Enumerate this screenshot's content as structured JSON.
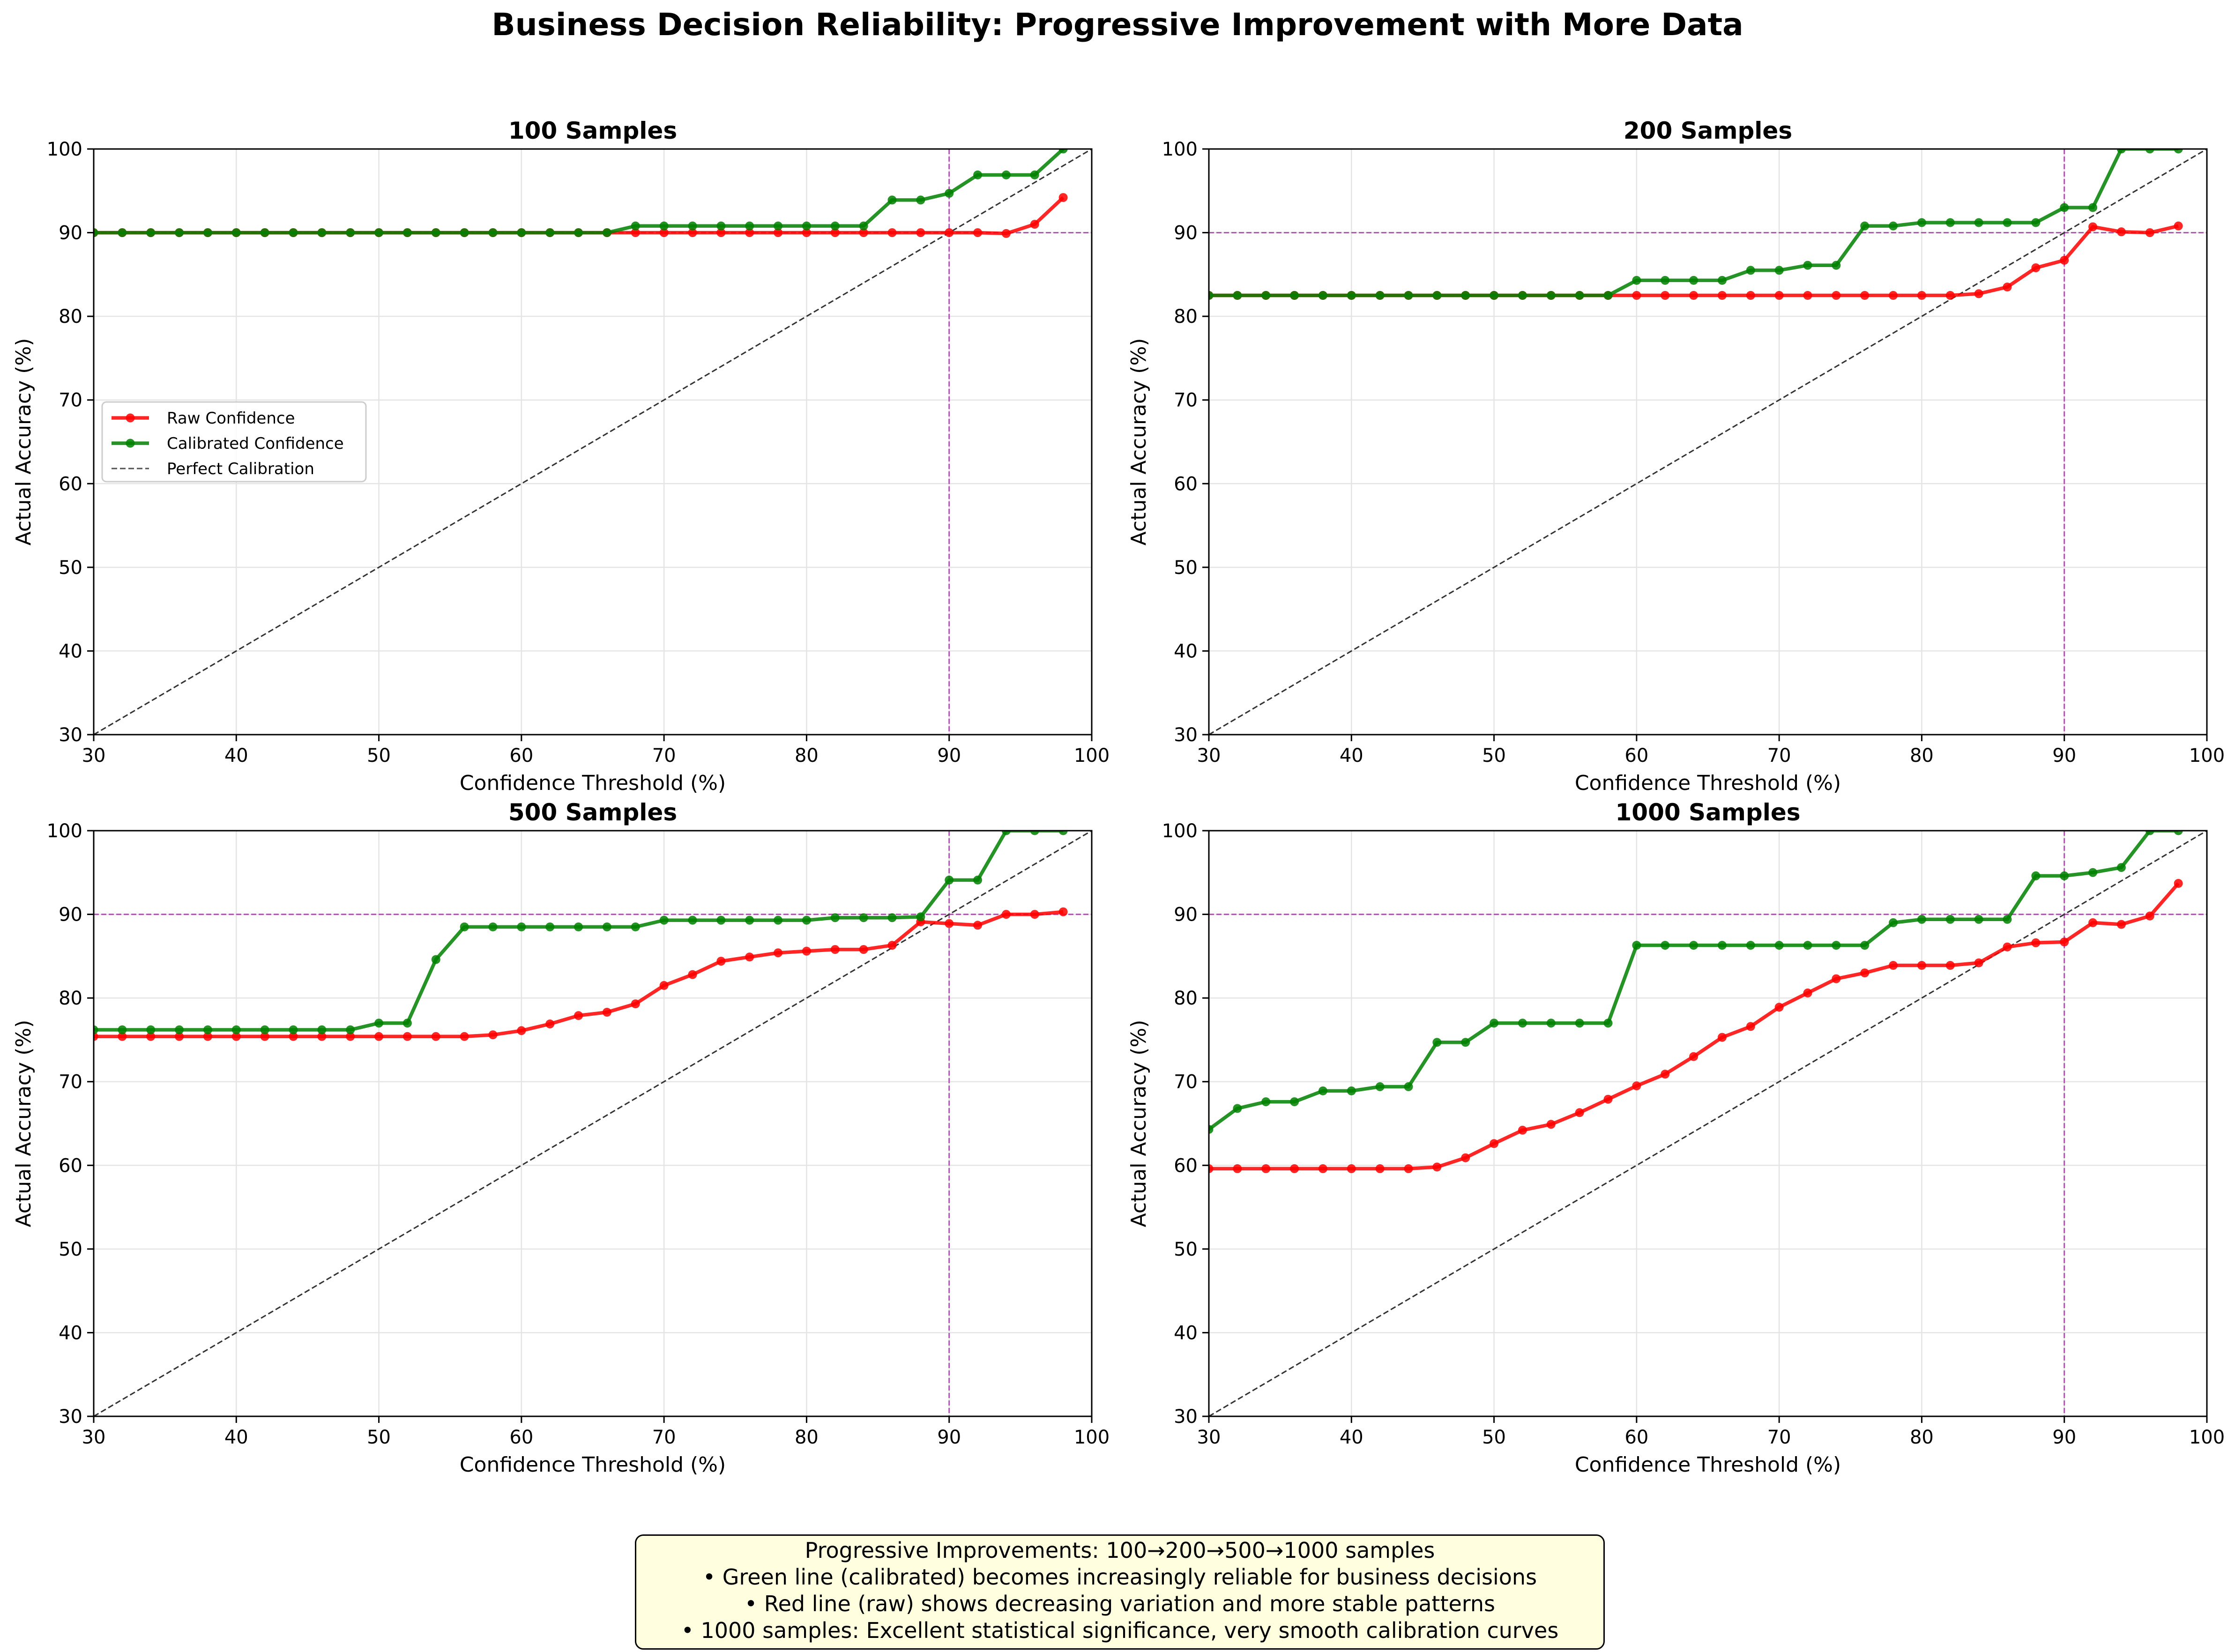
{
  "title": "Business Decision Reliability: Progressive Improvement with More Data",
  "note": {
    "lines": [
      "Progressive Improvements: 100→200→500→1000 samples",
      "• Green line (calibrated) becomes increasingly reliable for business decisions",
      "• Red line (raw) shows decreasing variation and more stable patterns",
      "• 1000 samples: Excellent statistical significance, very smooth calibration curves"
    ]
  },
  "colors": {
    "raw": "#ff0000",
    "calibrated": "#008000",
    "perfect": "#333333",
    "reference": "#a040a0"
  },
  "chart_data": [
    {
      "type": "line",
      "title": "100 Samples",
      "xlabel": "Confidence Threshold (%)",
      "ylabel": "Actual Accuracy (%)",
      "xlim": [
        30,
        100
      ],
      "ylim": [
        30,
        100
      ],
      "xticks": [
        30,
        40,
        50,
        60,
        70,
        80,
        90,
        100
      ],
      "yticks": [
        30,
        40,
        50,
        60,
        70,
        80,
        90,
        100
      ],
      "grid": true,
      "legend": "center-left",
      "reference_lines": {
        "x": 90,
        "y": 90
      },
      "x": [
        30,
        32,
        34,
        36,
        38,
        40,
        42,
        44,
        46,
        48,
        50,
        52,
        54,
        56,
        58,
        60,
        62,
        64,
        66,
        68,
        70,
        72,
        74,
        76,
        78,
        80,
        82,
        84,
        86,
        88,
        90,
        92,
        94,
        96,
        98
      ],
      "series": [
        {
          "name": "Raw Confidence",
          "values": [
            90,
            90,
            90,
            90,
            90,
            90,
            90,
            90,
            90,
            90,
            90,
            90,
            90,
            90,
            90,
            90,
            90,
            90,
            90,
            90,
            90,
            90,
            90,
            90,
            90,
            90,
            90,
            90,
            90,
            90,
            90,
            90,
            89.9,
            91,
            94.2
          ]
        },
        {
          "name": "Calibrated Confidence",
          "values": [
            90,
            90,
            90,
            90,
            90,
            90,
            90,
            90,
            90,
            90,
            90,
            90,
            90,
            90,
            90,
            90,
            90,
            90,
            90,
            90.8,
            90.8,
            90.8,
            90.8,
            90.8,
            90.8,
            90.8,
            90.8,
            90.8,
            93.9,
            93.9,
            94.7,
            96.9,
            96.9,
            96.9,
            100
          ]
        },
        {
          "name": "Perfect Calibration",
          "line": [
            [
              30,
              30
            ],
            [
              100,
              100
            ]
          ]
        }
      ]
    },
    {
      "type": "line",
      "title": "200 Samples",
      "xlabel": "Confidence Threshold (%)",
      "ylabel": "Actual Accuracy (%)",
      "xlim": [
        30,
        100
      ],
      "ylim": [
        30,
        100
      ],
      "xticks": [
        30,
        40,
        50,
        60,
        70,
        80,
        90,
        100
      ],
      "yticks": [
        30,
        40,
        50,
        60,
        70,
        80,
        90,
        100
      ],
      "grid": true,
      "reference_lines": {
        "x": 90,
        "y": 90
      },
      "x": [
        30,
        32,
        34,
        36,
        38,
        40,
        42,
        44,
        46,
        48,
        50,
        52,
        54,
        56,
        58,
        60,
        62,
        64,
        66,
        68,
        70,
        72,
        74,
        76,
        78,
        80,
        82,
        84,
        86,
        88,
        90,
        92,
        94,
        96,
        98
      ],
      "series": [
        {
          "name": "Raw Confidence",
          "values": [
            82.5,
            82.5,
            82.5,
            82.5,
            82.5,
            82.5,
            82.5,
            82.5,
            82.5,
            82.5,
            82.5,
            82.5,
            82.5,
            82.5,
            82.5,
            82.5,
            82.5,
            82.5,
            82.5,
            82.5,
            82.5,
            82.5,
            82.5,
            82.5,
            82.5,
            82.5,
            82.5,
            82.7,
            83.5,
            85.8,
            86.7,
            90.7,
            90.1,
            90,
            90.8
          ]
        },
        {
          "name": "Calibrated Confidence",
          "values": [
            82.5,
            82.5,
            82.5,
            82.5,
            82.5,
            82.5,
            82.5,
            82.5,
            82.5,
            82.5,
            82.5,
            82.5,
            82.5,
            82.5,
            82.5,
            84.3,
            84.3,
            84.3,
            84.3,
            85.5,
            85.5,
            86.1,
            86.1,
            90.8,
            90.8,
            91.2,
            91.2,
            91.2,
            91.2,
            91.2,
            93,
            93,
            100,
            100,
            100
          ]
        },
        {
          "name": "Perfect Calibration",
          "line": [
            [
              30,
              30
            ],
            [
              100,
              100
            ]
          ]
        }
      ]
    },
    {
      "type": "line",
      "title": "500 Samples",
      "xlabel": "Confidence Threshold (%)",
      "ylabel": "Actual Accuracy (%)",
      "xlim": [
        30,
        100
      ],
      "ylim": [
        30,
        100
      ],
      "xticks": [
        30,
        40,
        50,
        60,
        70,
        80,
        90,
        100
      ],
      "yticks": [
        30,
        40,
        50,
        60,
        70,
        80,
        90,
        100
      ],
      "grid": true,
      "reference_lines": {
        "x": 90,
        "y": 90
      },
      "x": [
        30,
        32,
        34,
        36,
        38,
        40,
        42,
        44,
        46,
        48,
        50,
        52,
        54,
        56,
        58,
        60,
        62,
        64,
        66,
        68,
        70,
        72,
        74,
        76,
        78,
        80,
        82,
        84,
        86,
        88,
        90,
        92,
        94,
        96,
        98
      ],
      "series": [
        {
          "name": "Raw Confidence",
          "values": [
            75.4,
            75.4,
            75.4,
            75.4,
            75.4,
            75.4,
            75.4,
            75.4,
            75.4,
            75.4,
            75.4,
            75.4,
            75.4,
            75.4,
            75.6,
            76.1,
            76.9,
            77.9,
            78.3,
            79.3,
            81.5,
            82.8,
            84.4,
            84.9,
            85.4,
            85.6,
            85.8,
            85.8,
            86.3,
            89.1,
            88.9,
            88.7,
            90,
            90,
            90.3
          ]
        },
        {
          "name": "Calibrated Confidence",
          "values": [
            76.2,
            76.2,
            76.2,
            76.2,
            76.2,
            76.2,
            76.2,
            76.2,
            76.2,
            76.2,
            77,
            77,
            84.6,
            88.5,
            88.5,
            88.5,
            88.5,
            88.5,
            88.5,
            88.5,
            89.3,
            89.3,
            89.3,
            89.3,
            89.3,
            89.3,
            89.6,
            89.6,
            89.6,
            89.7,
            94.1,
            94.1,
            100,
            100,
            100
          ]
        },
        {
          "name": "Perfect Calibration",
          "line": [
            [
              30,
              30
            ],
            [
              100,
              100
            ]
          ]
        }
      ]
    },
    {
      "type": "line",
      "title": "1000 Samples",
      "xlabel": "Confidence Threshold (%)",
      "ylabel": "Actual Accuracy (%)",
      "xlim": [
        30,
        100
      ],
      "ylim": [
        30,
        100
      ],
      "xticks": [
        30,
        40,
        50,
        60,
        70,
        80,
        90,
        100
      ],
      "yticks": [
        30,
        40,
        50,
        60,
        70,
        80,
        90,
        100
      ],
      "grid": true,
      "reference_lines": {
        "x": 90,
        "y": 90
      },
      "x": [
        30,
        32,
        34,
        36,
        38,
        40,
        42,
        44,
        46,
        48,
        50,
        52,
        54,
        56,
        58,
        60,
        62,
        64,
        66,
        68,
        70,
        72,
        74,
        76,
        78,
        80,
        82,
        84,
        86,
        88,
        90,
        92,
        94,
        96,
        98
      ],
      "series": [
        {
          "name": "Raw Confidence",
          "values": [
            59.6,
            59.6,
            59.6,
            59.6,
            59.6,
            59.6,
            59.6,
            59.6,
            59.8,
            60.9,
            62.6,
            64.2,
            64.9,
            66.3,
            67.9,
            69.5,
            70.9,
            73,
            75.3,
            76.6,
            78.9,
            80.6,
            82.3,
            83,
            83.9,
            83.9,
            83.9,
            84.2,
            86.1,
            86.6,
            86.7,
            89,
            88.8,
            89.8,
            93.7
          ]
        },
        {
          "name": "Calibrated Confidence",
          "values": [
            64.3,
            66.8,
            67.6,
            67.6,
            68.9,
            68.9,
            69.4,
            69.4,
            74.7,
            74.7,
            77,
            77,
            77,
            77,
            77,
            86.3,
            86.3,
            86.3,
            86.3,
            86.3,
            86.3,
            86.3,
            86.3,
            86.3,
            89,
            89.4,
            89.4,
            89.4,
            89.4,
            94.6,
            94.6,
            95,
            95.6,
            100,
            100
          ]
        },
        {
          "name": "Perfect Calibration",
          "line": [
            [
              30,
              30
            ],
            [
              100,
              100
            ]
          ]
        }
      ]
    }
  ]
}
